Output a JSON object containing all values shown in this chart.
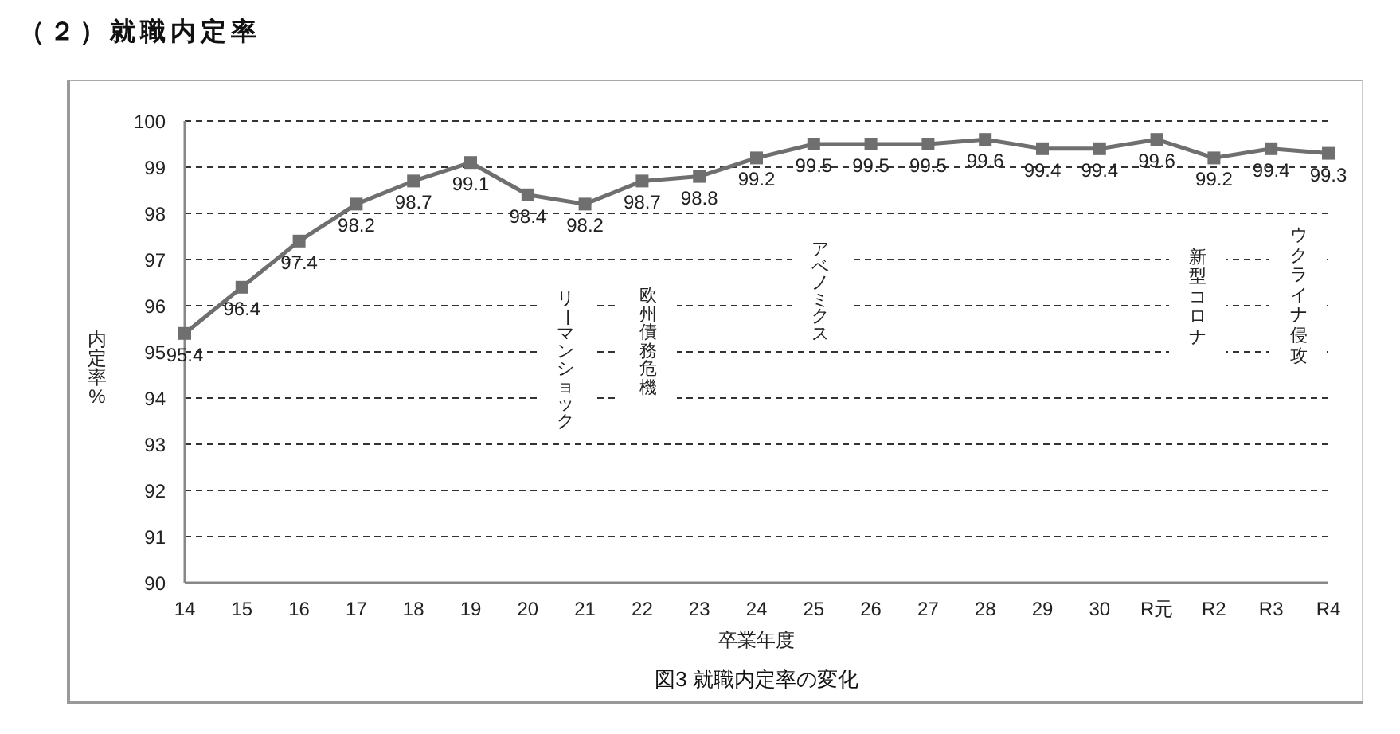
{
  "chart_data": {
    "type": "line",
    "title": "（２）就職内定率",
    "xlabel": "卒業年度",
    "ylabel": "内定率%",
    "categories": [
      "14",
      "15",
      "16",
      "17",
      "18",
      "19",
      "20",
      "21",
      "22",
      "23",
      "24",
      "25",
      "26",
      "27",
      "28",
      "29",
      "30",
      "R元",
      "R2",
      "R3",
      "R4"
    ],
    "series": [
      {
        "color": "#6f6f6f",
        "values": [
          95.4,
          96.4,
          97.4,
          98.2,
          98.7,
          99.1,
          98.4,
          98.2,
          98.7,
          98.8,
          99.2,
          99.5,
          99.5,
          99.5,
          99.6,
          99.4,
          99.4,
          99.6,
          99.2,
          99.4,
          99.3
        ]
      }
    ],
    "ylim": [
      90,
      100
    ],
    "yticks": [
      90,
      91,
      92,
      93,
      94,
      95,
      96,
      97,
      98,
      99,
      100
    ],
    "grid": "y",
    "marker": "square",
    "line_style": "solid",
    "data_labels": true,
    "annotations": [
      "リーマンショック",
      "欧州債務危機",
      "アベノミクス",
      "新型コロナ",
      "ウクライナ侵攻",
      "図3 就職内定率の変化"
    ]
  }
}
